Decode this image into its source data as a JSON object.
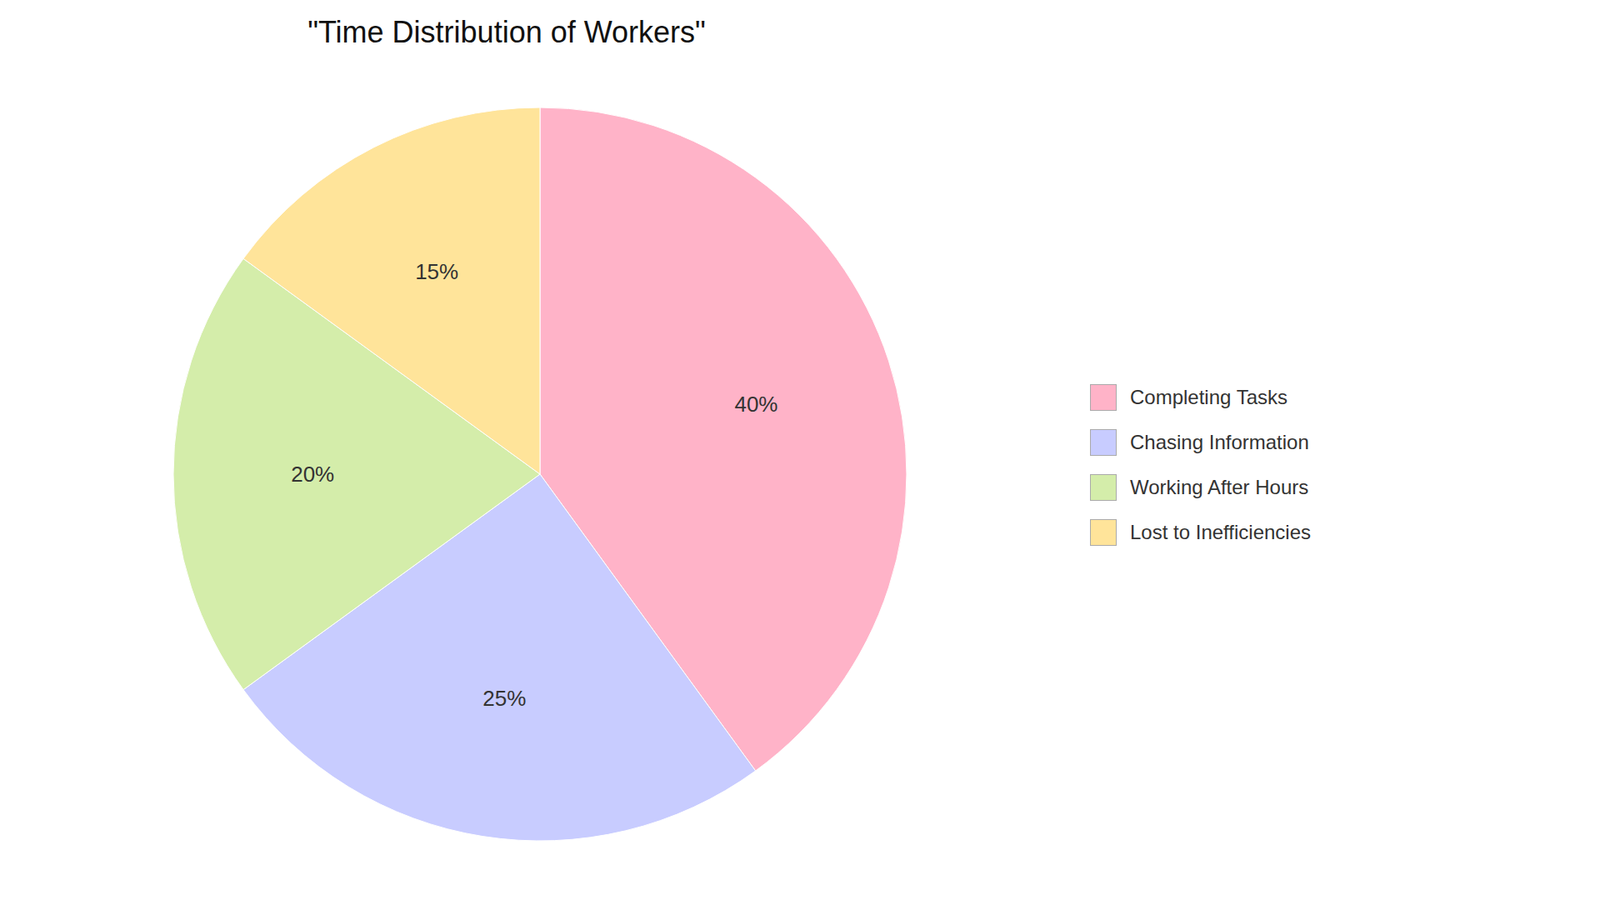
{
  "chart_data": {
    "type": "pie",
    "title": "\"Time Distribution of Workers\"",
    "categories": [
      "Completing Tasks",
      "Chasing Information",
      "Working After Hours",
      "Lost to Inefficiencies"
    ],
    "values": [
      40,
      25,
      20,
      15
    ],
    "value_labels": [
      "40%",
      "25%",
      "20%",
      "15%"
    ],
    "colors": [
      "#FFB3C8",
      "#C8CCFF",
      "#D4EDAA",
      "#FFE49A"
    ],
    "data_labels": true,
    "legend": "right"
  }
}
